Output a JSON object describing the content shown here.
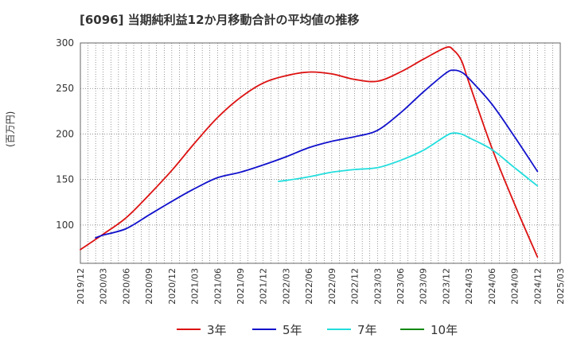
{
  "chart_data": {
    "type": "line",
    "title": "[6096]  当期純利益12か月移動合計の平均値の推移",
    "ylabel": "(百万円)",
    "ylim": [
      58,
      300
    ],
    "yticks": [
      100,
      150,
      200,
      250,
      300
    ],
    "x_ticks": [
      "2019/12",
      "2020/03",
      "2020/06",
      "2020/09",
      "2020/12",
      "2021/03",
      "2021/06",
      "2021/09",
      "2021/12",
      "2022/03",
      "2022/06",
      "2022/09",
      "2022/12",
      "2023/03",
      "2023/06",
      "2023/09",
      "2023/12",
      "2024/03",
      "2024/06",
      "2024/09",
      "2024/12",
      "2025/03"
    ],
    "grid": true,
    "legend_position": "bottom",
    "series": [
      {
        "name": "3年",
        "color": "#dd1111",
        "x": [
          "2019/12",
          "2020/03",
          "2020/06",
          "2020/09",
          "2020/12",
          "2021/03",
          "2021/06",
          "2021/09",
          "2021/12",
          "2022/03",
          "2022/06",
          "2022/09",
          "2022/12",
          "2023/03",
          "2023/06",
          "2023/09",
          "2023/12",
          "2024/01",
          "2024/02",
          "2024/03",
          "2024/06",
          "2024/09",
          "2024/12"
        ],
        "y": [
          73,
          90,
          108,
          133,
          160,
          190,
          218,
          240,
          256,
          264,
          268,
          266,
          260,
          258,
          268,
          282,
          295,
          292,
          281,
          257,
          185,
          123,
          65
        ]
      },
      {
        "name": "5年",
        "color": "#1111cc",
        "x": [
          "2020/02",
          "2020/03",
          "2020/06",
          "2020/09",
          "2020/12",
          "2021/03",
          "2021/06",
          "2021/09",
          "2021/12",
          "2022/03",
          "2022/06",
          "2022/09",
          "2022/12",
          "2023/03",
          "2023/06",
          "2023/09",
          "2023/12",
          "2024/01",
          "2024/02",
          "2024/03",
          "2024/06",
          "2024/09",
          "2024/12"
        ],
        "y": [
          86,
          89,
          96,
          111,
          126,
          140,
          152,
          158,
          166,
          175,
          185,
          192,
          197,
          204,
          223,
          246,
          267,
          270,
          268,
          261,
          233,
          197,
          159
        ]
      },
      {
        "name": "7年",
        "color": "#22dddd",
        "x": [
          "2022/02",
          "2022/03",
          "2022/06",
          "2022/09",
          "2022/12",
          "2023/03",
          "2023/06",
          "2023/09",
          "2023/12",
          "2024/01",
          "2024/02",
          "2024/03",
          "2024/06",
          "2024/09",
          "2024/12"
        ],
        "y": [
          148,
          149,
          153,
          158,
          161,
          163,
          171,
          182,
          198,
          201,
          200,
          196,
          183,
          163,
          143
        ]
      },
      {
        "name": "10年",
        "color": "#118811",
        "x": [],
        "y": []
      }
    ]
  }
}
